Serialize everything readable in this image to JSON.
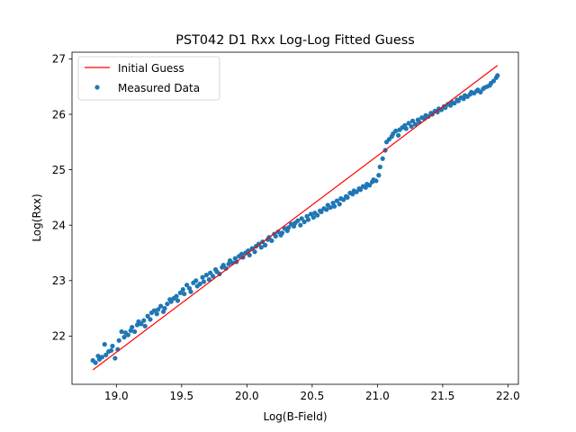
{
  "chart_data": {
    "type": "scatter",
    "title": "PST042 D1 Rxx Log-Log Fitted Guess",
    "xlabel": "Log(B-Field)",
    "ylabel": "Log(Rxx)",
    "xlim": [
      18.66,
      22.08
    ],
    "ylim": [
      21.13,
      27.12
    ],
    "x_ticks": [
      19.0,
      19.5,
      20.0,
      20.5,
      21.0,
      21.5,
      22.0
    ],
    "x_tick_labels": [
      "19.0",
      "19.5",
      "20.0",
      "20.5",
      "21.0",
      "21.5",
      "22.0"
    ],
    "y_ticks": [
      22,
      23,
      24,
      25,
      26,
      27
    ],
    "y_tick_labels": [
      "22",
      "23",
      "24",
      "25",
      "26",
      "27"
    ],
    "grid": false,
    "legend_position": "top-left",
    "colors": {
      "fit_line": "#ff0000",
      "data_points": "#1f77b4"
    },
    "series": [
      {
        "name": "Initial Guess",
        "kind": "line",
        "x": [
          18.82,
          21.92
        ],
        "y": [
          21.39,
          26.88
        ]
      },
      {
        "name": "Measured Data",
        "kind": "scatter",
        "x": [
          18.82,
          18.84,
          18.86,
          18.87,
          18.89,
          18.91,
          18.92,
          18.94,
          18.96,
          18.97,
          18.99,
          19.01,
          19.02,
          19.04,
          19.06,
          19.07,
          19.09,
          19.11,
          19.12,
          19.14,
          19.16,
          19.17,
          19.19,
          19.21,
          19.22,
          19.24,
          19.26,
          19.27,
          19.29,
          19.31,
          19.32,
          19.34,
          19.36,
          19.37,
          19.39,
          19.41,
          19.42,
          19.44,
          19.46,
          19.47,
          19.49,
          19.51,
          19.52,
          19.54,
          19.56,
          19.57,
          19.59,
          19.61,
          19.62,
          19.64,
          19.66,
          19.67,
          19.69,
          19.71,
          19.72,
          19.74,
          19.76,
          19.77,
          19.79,
          19.81,
          19.82,
          19.84,
          19.86,
          19.87,
          19.89,
          19.91,
          19.92,
          19.94,
          19.96,
          19.97,
          19.99,
          20.01,
          20.02,
          20.04,
          20.06,
          20.07,
          20.09,
          20.11,
          20.12,
          20.14,
          20.16,
          20.17,
          20.19,
          20.21,
          20.22,
          20.24,
          20.26,
          20.27,
          20.29,
          20.31,
          20.32,
          20.34,
          20.36,
          20.37,
          20.39,
          20.41,
          20.42,
          20.44,
          20.46,
          20.47,
          20.49,
          20.51,
          20.52,
          20.54,
          20.56,
          20.57,
          20.59,
          20.61,
          20.62,
          20.64,
          20.66,
          20.67,
          20.69,
          20.71,
          20.72,
          20.74,
          20.76,
          20.77,
          20.79,
          20.81,
          20.82,
          20.84,
          20.86,
          20.87,
          20.89,
          20.91,
          20.92,
          20.94,
          20.96,
          20.97,
          20.99,
          21.01,
          21.02,
          21.04,
          21.06,
          21.07,
          21.09,
          21.11,
          21.12,
          21.14,
          21.16,
          21.17,
          21.19,
          21.21,
          21.22,
          21.24,
          21.26,
          21.27,
          21.29,
          21.31,
          21.32,
          21.34,
          21.36,
          21.37,
          21.39,
          21.41,
          21.42,
          21.44,
          21.46,
          21.47,
          21.49,
          21.51,
          21.52,
          21.54,
          21.56,
          21.57,
          21.59,
          21.61,
          21.62,
          21.64,
          21.66,
          21.67,
          21.69,
          21.71,
          21.72,
          21.74,
          21.76,
          21.77,
          21.79,
          21.81,
          21.82,
          21.84,
          21.86,
          21.87,
          21.89,
          21.91,
          21.92
        ],
        "y": [
          21.56,
          21.52,
          21.64,
          21.58,
          21.62,
          21.85,
          21.66,
          21.72,
          21.74,
          21.82,
          21.6,
          21.76,
          21.92,
          22.08,
          21.98,
          22.06,
          22.02,
          22.1,
          22.16,
          22.08,
          22.2,
          22.26,
          22.22,
          22.28,
          22.18,
          22.36,
          22.3,
          22.42,
          22.46,
          22.4,
          22.48,
          22.54,
          22.44,
          22.5,
          22.58,
          22.66,
          22.62,
          22.68,
          22.72,
          22.64,
          22.78,
          22.84,
          22.76,
          22.92,
          22.86,
          22.8,
          22.96,
          23.0,
          22.9,
          22.94,
          23.06,
          22.98,
          23.1,
          23.02,
          23.14,
          23.08,
          23.2,
          23.16,
          23.12,
          23.24,
          23.28,
          23.22,
          23.3,
          23.36,
          23.32,
          23.4,
          23.34,
          23.44,
          23.48,
          23.42,
          23.5,
          23.54,
          23.46,
          23.58,
          23.52,
          23.62,
          23.66,
          23.6,
          23.7,
          23.64,
          23.74,
          23.78,
          23.72,
          23.84,
          23.8,
          23.88,
          23.82,
          23.86,
          23.94,
          23.9,
          23.96,
          24.02,
          23.98,
          24.04,
          24.08,
          24.0,
          24.12,
          24.06,
          24.16,
          24.1,
          24.2,
          24.14,
          24.22,
          24.18,
          24.26,
          24.24,
          24.3,
          24.28,
          24.36,
          24.32,
          24.4,
          24.34,
          24.44,
          24.38,
          24.48,
          24.46,
          24.52,
          24.5,
          24.58,
          24.56,
          24.62,
          24.6,
          24.66,
          24.64,
          24.7,
          24.68,
          24.74,
          24.72,
          24.78,
          24.82,
          24.8,
          24.9,
          25.05,
          25.2,
          25.35,
          25.5,
          25.55,
          25.6,
          25.65,
          25.7,
          25.62,
          25.72,
          25.76,
          25.8,
          25.74,
          25.84,
          25.78,
          25.88,
          25.82,
          25.9,
          25.86,
          25.94,
          25.92,
          25.98,
          25.96,
          26.02,
          26.0,
          26.06,
          26.04,
          26.1,
          26.08,
          26.14,
          26.12,
          26.18,
          26.16,
          26.22,
          26.2,
          26.26,
          26.24,
          26.3,
          26.28,
          26.34,
          26.32,
          26.36,
          26.4,
          26.38,
          26.42,
          26.44,
          26.4,
          26.46,
          26.48,
          26.5,
          26.52,
          26.56,
          26.6,
          26.66,
          26.7
        ]
      }
    ]
  }
}
